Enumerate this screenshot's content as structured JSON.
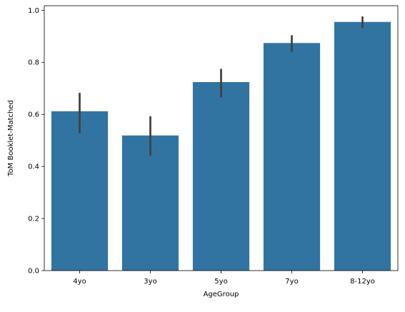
{
  "chart_data": {
    "type": "bar",
    "title": "",
    "xlabel": "AgeGroup",
    "ylabel": "ToM Booklet-Matched",
    "categories": [
      "4yo",
      "3yo",
      "5yo",
      "7yo",
      "8-12yo"
    ],
    "values": [
      0.612,
      0.519,
      0.724,
      0.874,
      0.955
    ],
    "error_bars": [
      {
        "low": 0.527,
        "high": 0.683
      },
      {
        "low": 0.441,
        "high": 0.593
      },
      {
        "low": 0.665,
        "high": 0.775
      },
      {
        "low": 0.84,
        "high": 0.904
      },
      {
        "low": 0.932,
        "high": 0.976
      }
    ],
    "ylim": [
      0,
      1.0
    ],
    "yticks": [
      "0.0",
      "0.2",
      "0.4",
      "0.6",
      "0.8",
      "1.0"
    ],
    "bar_color": "#3274a1",
    "errorbar_color": "#404040",
    "grid": false,
    "legend": "none"
  }
}
